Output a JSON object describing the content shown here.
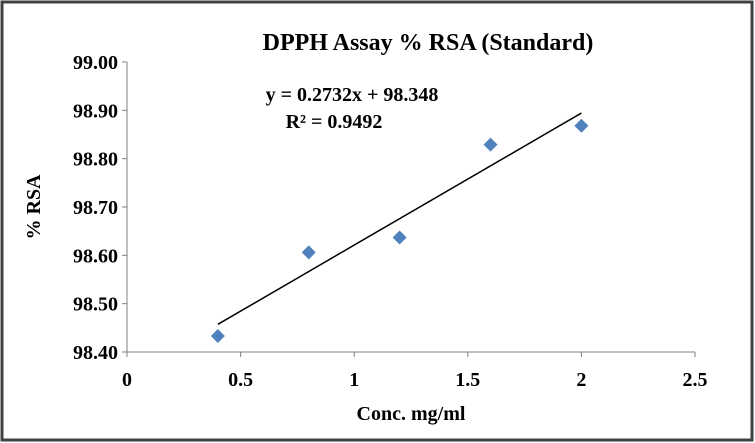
{
  "chart_data": {
    "type": "scatter",
    "title": "DPPH Assay % RSA (Standard)",
    "xlabel": "Conc. mg/ml",
    "ylabel": "% RSA",
    "xlim": [
      0,
      2.5
    ],
    "ylim": [
      98.4,
      99.0
    ],
    "x_ticks": [
      "0",
      "0.5",
      "1",
      "1.5",
      "2",
      "2.5"
    ],
    "y_ticks": [
      "98.40",
      "98.50",
      "98.60",
      "98.70",
      "98.80",
      "98.90",
      "99.00"
    ],
    "grid": false,
    "legend": "none",
    "marker": "diamond",
    "marker_color": "#4F81BD",
    "series": [
      {
        "x": [
          0.4,
          0.8,
          1.2,
          1.6,
          2.0
        ],
        "y": [
          98.433,
          98.606,
          98.637,
          98.829,
          98.868
        ]
      }
    ],
    "trendline": {
      "type": "linear",
      "slope": 0.2732,
      "intercept": 98.348,
      "x_range": [
        0.4,
        2.0
      ],
      "color": "#000000",
      "equation_label": "y = 0.2732x + 98.348",
      "r2_label": "R² = 0.9492"
    }
  }
}
